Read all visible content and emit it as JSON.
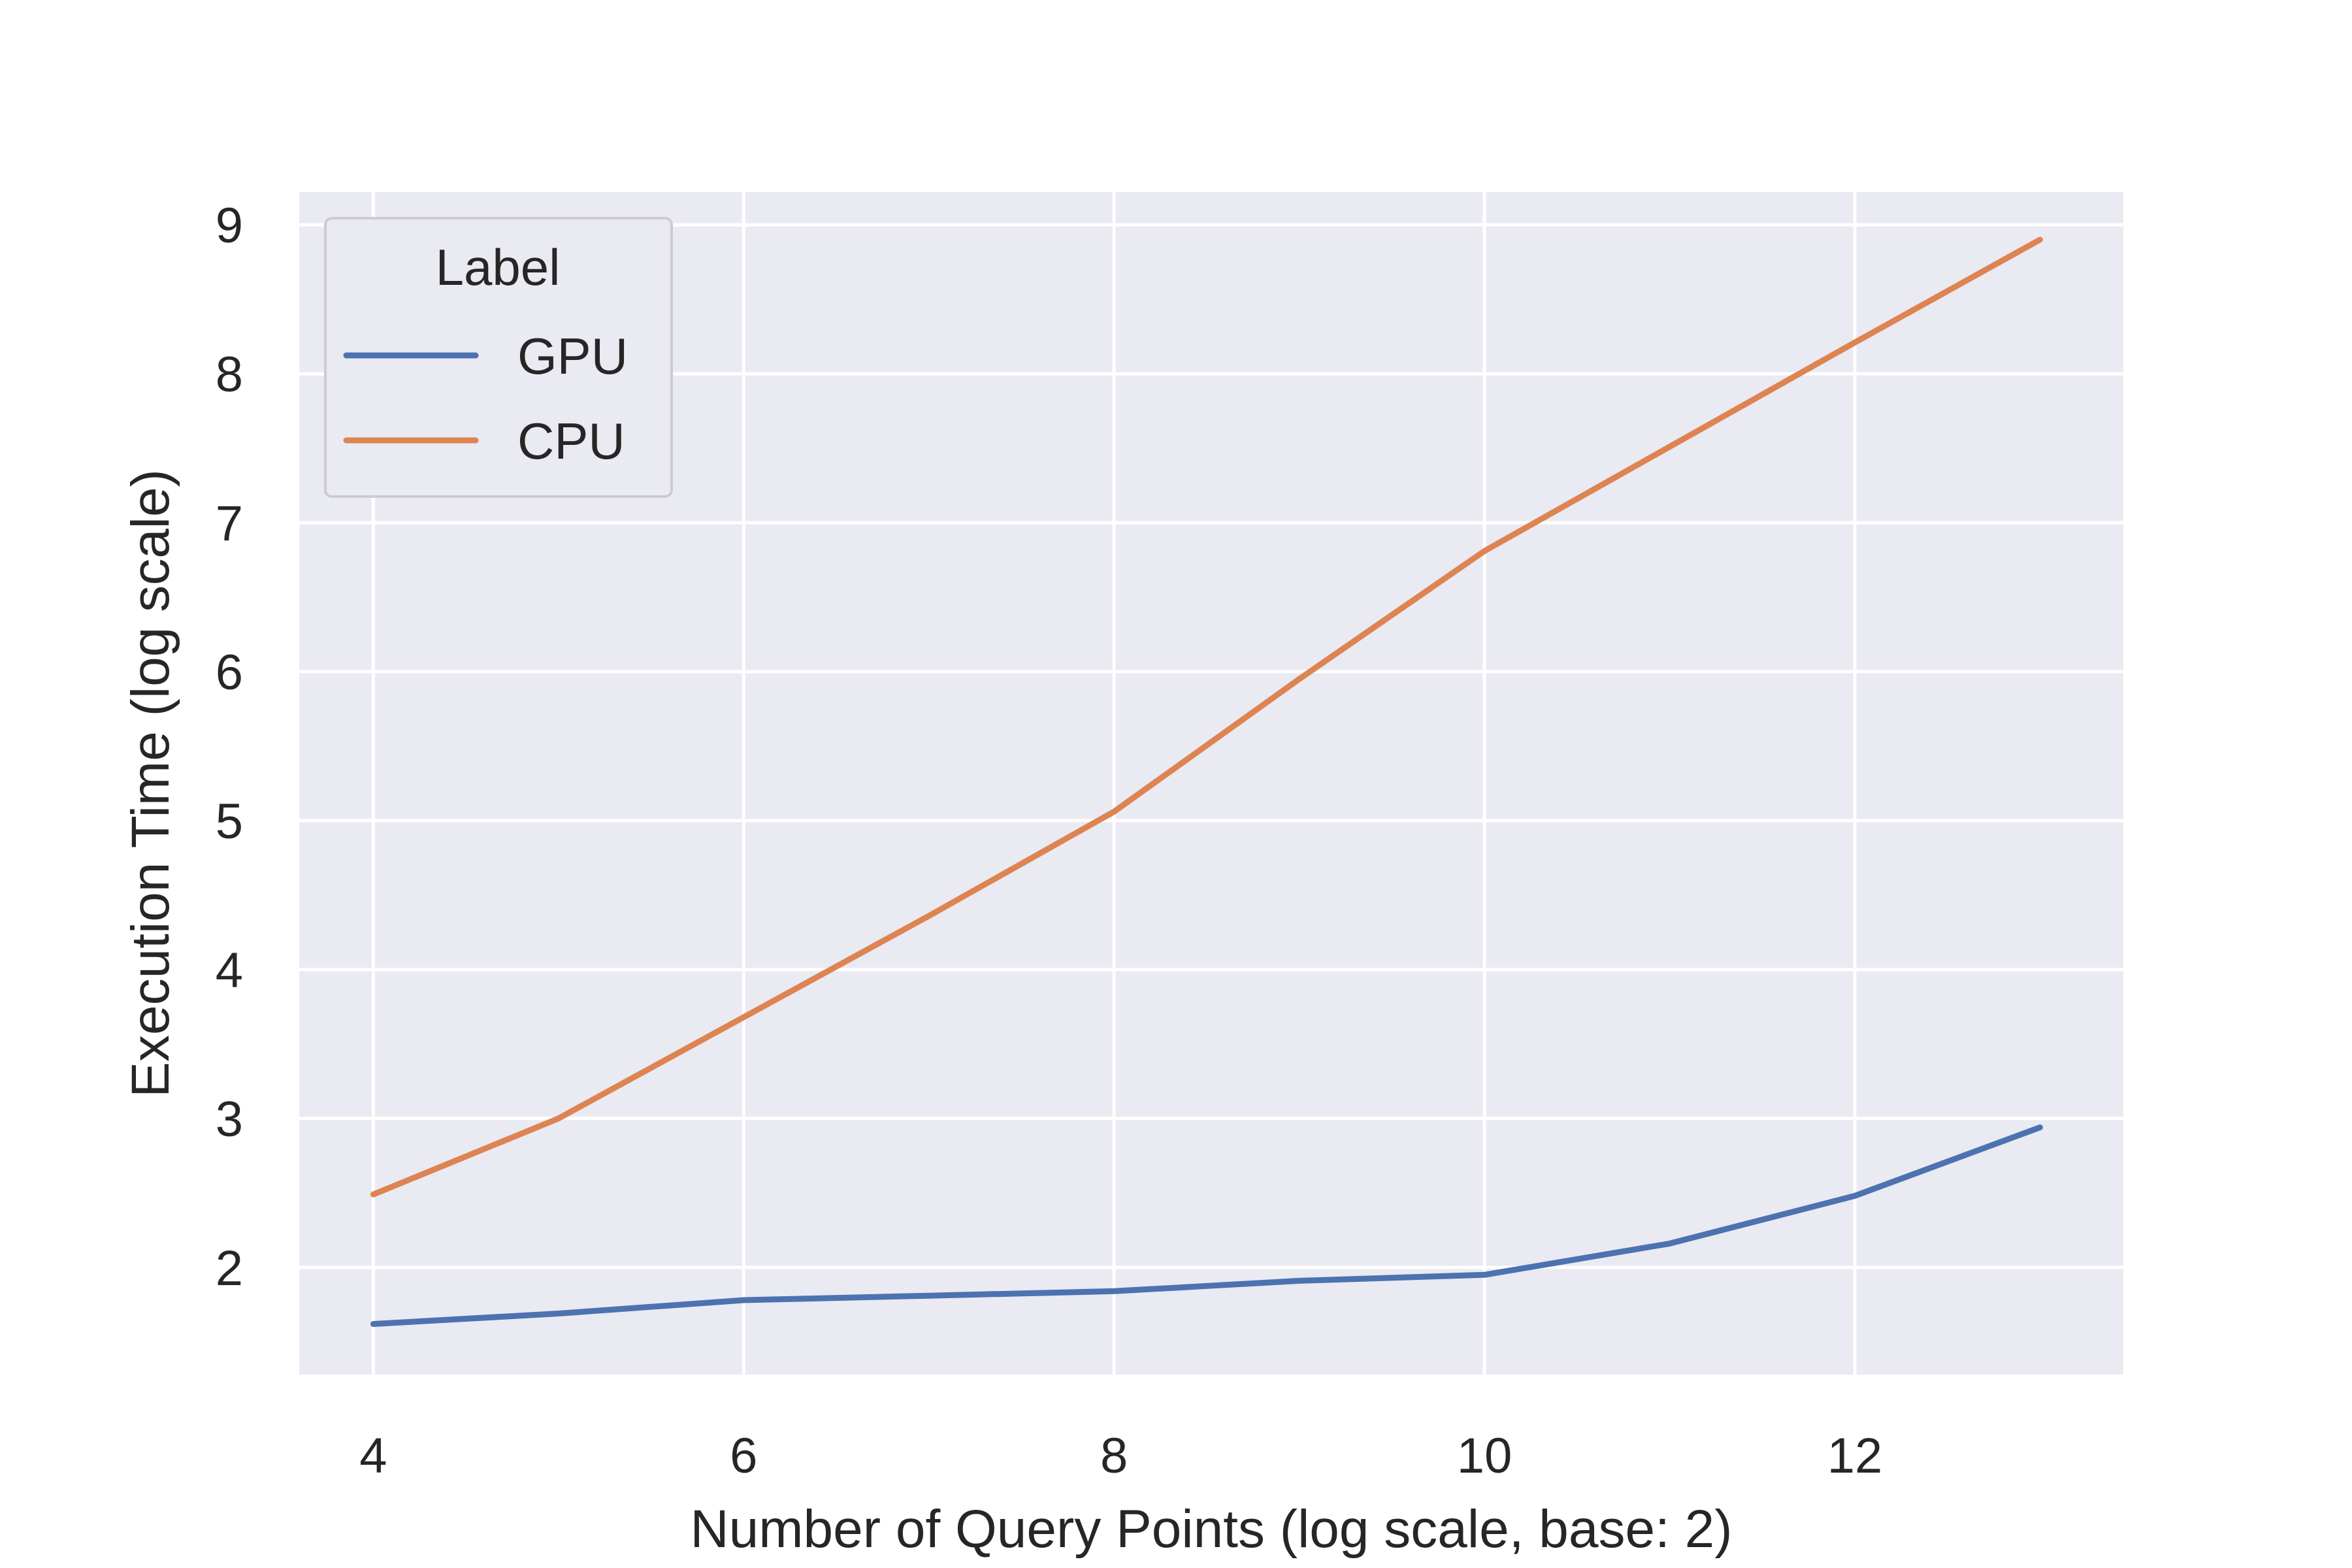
{
  "chart_data": {
    "type": "line",
    "title": "",
    "xlabel": "Number of Query Points (log scale, base: 2)",
    "ylabel": "Execution Time (log scale)",
    "xlim": [
      3.6,
      13.45
    ],
    "ylim": [
      1.28,
      9.22
    ],
    "xticks": [
      4,
      6,
      8,
      10,
      12
    ],
    "yticks": [
      2,
      3,
      4,
      5,
      6,
      7,
      8,
      9
    ],
    "grid": true,
    "legend": {
      "title": "Label",
      "position": "top-left"
    },
    "series": [
      {
        "name": "GPU",
        "color": "#4c72b0",
        "x": [
          4,
          5,
          6,
          7,
          8,
          9,
          10,
          11,
          12,
          13
        ],
        "y": [
          1.62,
          1.69,
          1.78,
          1.81,
          1.84,
          1.91,
          1.95,
          2.16,
          2.48,
          2.94
        ]
      },
      {
        "name": "CPU",
        "color": "#dd8452",
        "x": [
          4,
          5,
          6,
          7,
          8,
          9,
          10,
          11,
          12,
          13
        ],
        "y": [
          2.49,
          3.0,
          3.68,
          4.36,
          5.06,
          5.95,
          6.81,
          7.51,
          8.21,
          8.9
        ]
      }
    ],
    "colors": {
      "plot_background": "#eaeaf2",
      "grid": "#ffffff",
      "text": "#262626"
    }
  }
}
